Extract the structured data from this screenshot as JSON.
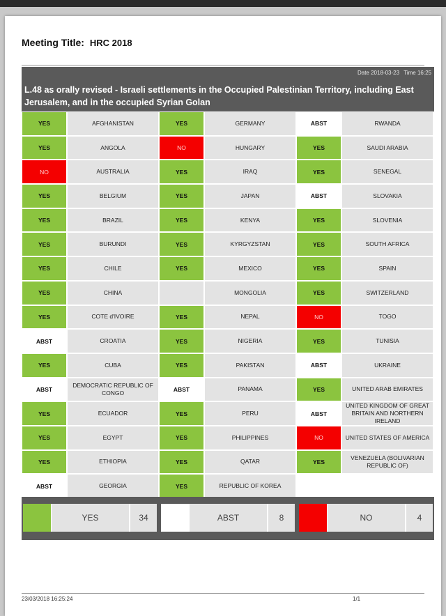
{
  "meeting": {
    "label": "Meeting Title:",
    "title": "HRC 2018"
  },
  "header": {
    "date": "Date 2018-03-23",
    "time": "Time 16:25",
    "resolution_title": "L.48 as orally revised - Israeli settlements in the Occupied Palestinian Territory, including East Jerusalem, and in the occupied Syrian Golan"
  },
  "colors": {
    "yes": "#8bc43f",
    "no": "#f40000",
    "abst": "#ffffff",
    "header": "#5a5a5a",
    "cell": "#e3e3e3"
  },
  "columns": [
    [
      {
        "vote": "YES",
        "country": "AFGHANISTAN"
      },
      {
        "vote": "YES",
        "country": "ANGOLA"
      },
      {
        "vote": "NO",
        "country": "AUSTRALIA"
      },
      {
        "vote": "YES",
        "country": "BELGIUM"
      },
      {
        "vote": "YES",
        "country": "BRAZIL"
      },
      {
        "vote": "YES",
        "country": "BURUNDI"
      },
      {
        "vote": "YES",
        "country": "CHILE"
      },
      {
        "vote": "YES",
        "country": "CHINA"
      },
      {
        "vote": "YES",
        "country": "COTE d'IVOIRE"
      },
      {
        "vote": "ABST",
        "country": "CROATIA"
      },
      {
        "vote": "YES",
        "country": "CUBA"
      },
      {
        "vote": "ABST",
        "country": "DEMOCRATIC REPUBLIC OF CONGO"
      },
      {
        "vote": "YES",
        "country": "ECUADOR"
      },
      {
        "vote": "YES",
        "country": "EGYPT"
      },
      {
        "vote": "YES",
        "country": "ETHIOPIA"
      },
      {
        "vote": "ABST",
        "country": "GEORGIA"
      }
    ],
    [
      {
        "vote": "YES",
        "country": "GERMANY"
      },
      {
        "vote": "NO",
        "country": "HUNGARY"
      },
      {
        "vote": "YES",
        "country": "IRAQ"
      },
      {
        "vote": "YES",
        "country": "JAPAN"
      },
      {
        "vote": "YES",
        "country": "KENYA"
      },
      {
        "vote": "YES",
        "country": "KYRGYZSTAN"
      },
      {
        "vote": "YES",
        "country": "MEXICO"
      },
      {
        "vote": "",
        "country": "MONGOLIA"
      },
      {
        "vote": "YES",
        "country": "NEPAL"
      },
      {
        "vote": "YES",
        "country": "NIGERIA"
      },
      {
        "vote": "YES",
        "country": "PAKISTAN"
      },
      {
        "vote": "ABST",
        "country": "PANAMA"
      },
      {
        "vote": "YES",
        "country": "PERU"
      },
      {
        "vote": "YES",
        "country": "PHILIPPINES"
      },
      {
        "vote": "YES",
        "country": "QATAR"
      },
      {
        "vote": "YES",
        "country": "REPUBLIC OF KOREA"
      }
    ],
    [
      {
        "vote": "ABST",
        "country": "RWANDA"
      },
      {
        "vote": "YES",
        "country": "SAUDI ARABIA"
      },
      {
        "vote": "YES",
        "country": "SENEGAL"
      },
      {
        "vote": "ABST",
        "country": "SLOVAKIA"
      },
      {
        "vote": "YES",
        "country": "SLOVENIA"
      },
      {
        "vote": "YES",
        "country": "SOUTH AFRICA"
      },
      {
        "vote": "YES",
        "country": "SPAIN"
      },
      {
        "vote": "YES",
        "country": "SWITZERLAND"
      },
      {
        "vote": "NO",
        "country": "TOGO"
      },
      {
        "vote": "YES",
        "country": "TUNISIA"
      },
      {
        "vote": "ABST",
        "country": "UKRAINE"
      },
      {
        "vote": "YES",
        "country": "UNITED ARAB EMIRATES"
      },
      {
        "vote": "ABST",
        "country": "UNITED KINGDOM OF GREAT BRITAIN AND NORTHERN IRELAND"
      },
      {
        "vote": "NO",
        "country": "UNITED STATES OF AMERICA"
      },
      {
        "vote": "YES",
        "country": "VENEZUELA (BOLIVARIAN REPUBLIC OF)"
      },
      {
        "vote": "",
        "country": ""
      }
    ]
  ],
  "summary": {
    "yes": {
      "label": "YES",
      "count": "34"
    },
    "abst": {
      "label": "ABST",
      "count": "8"
    },
    "no": {
      "label": "NO",
      "count": "4"
    }
  },
  "footer": {
    "timestamp": "23/03/2018 16:25:24",
    "page": "1/1"
  }
}
